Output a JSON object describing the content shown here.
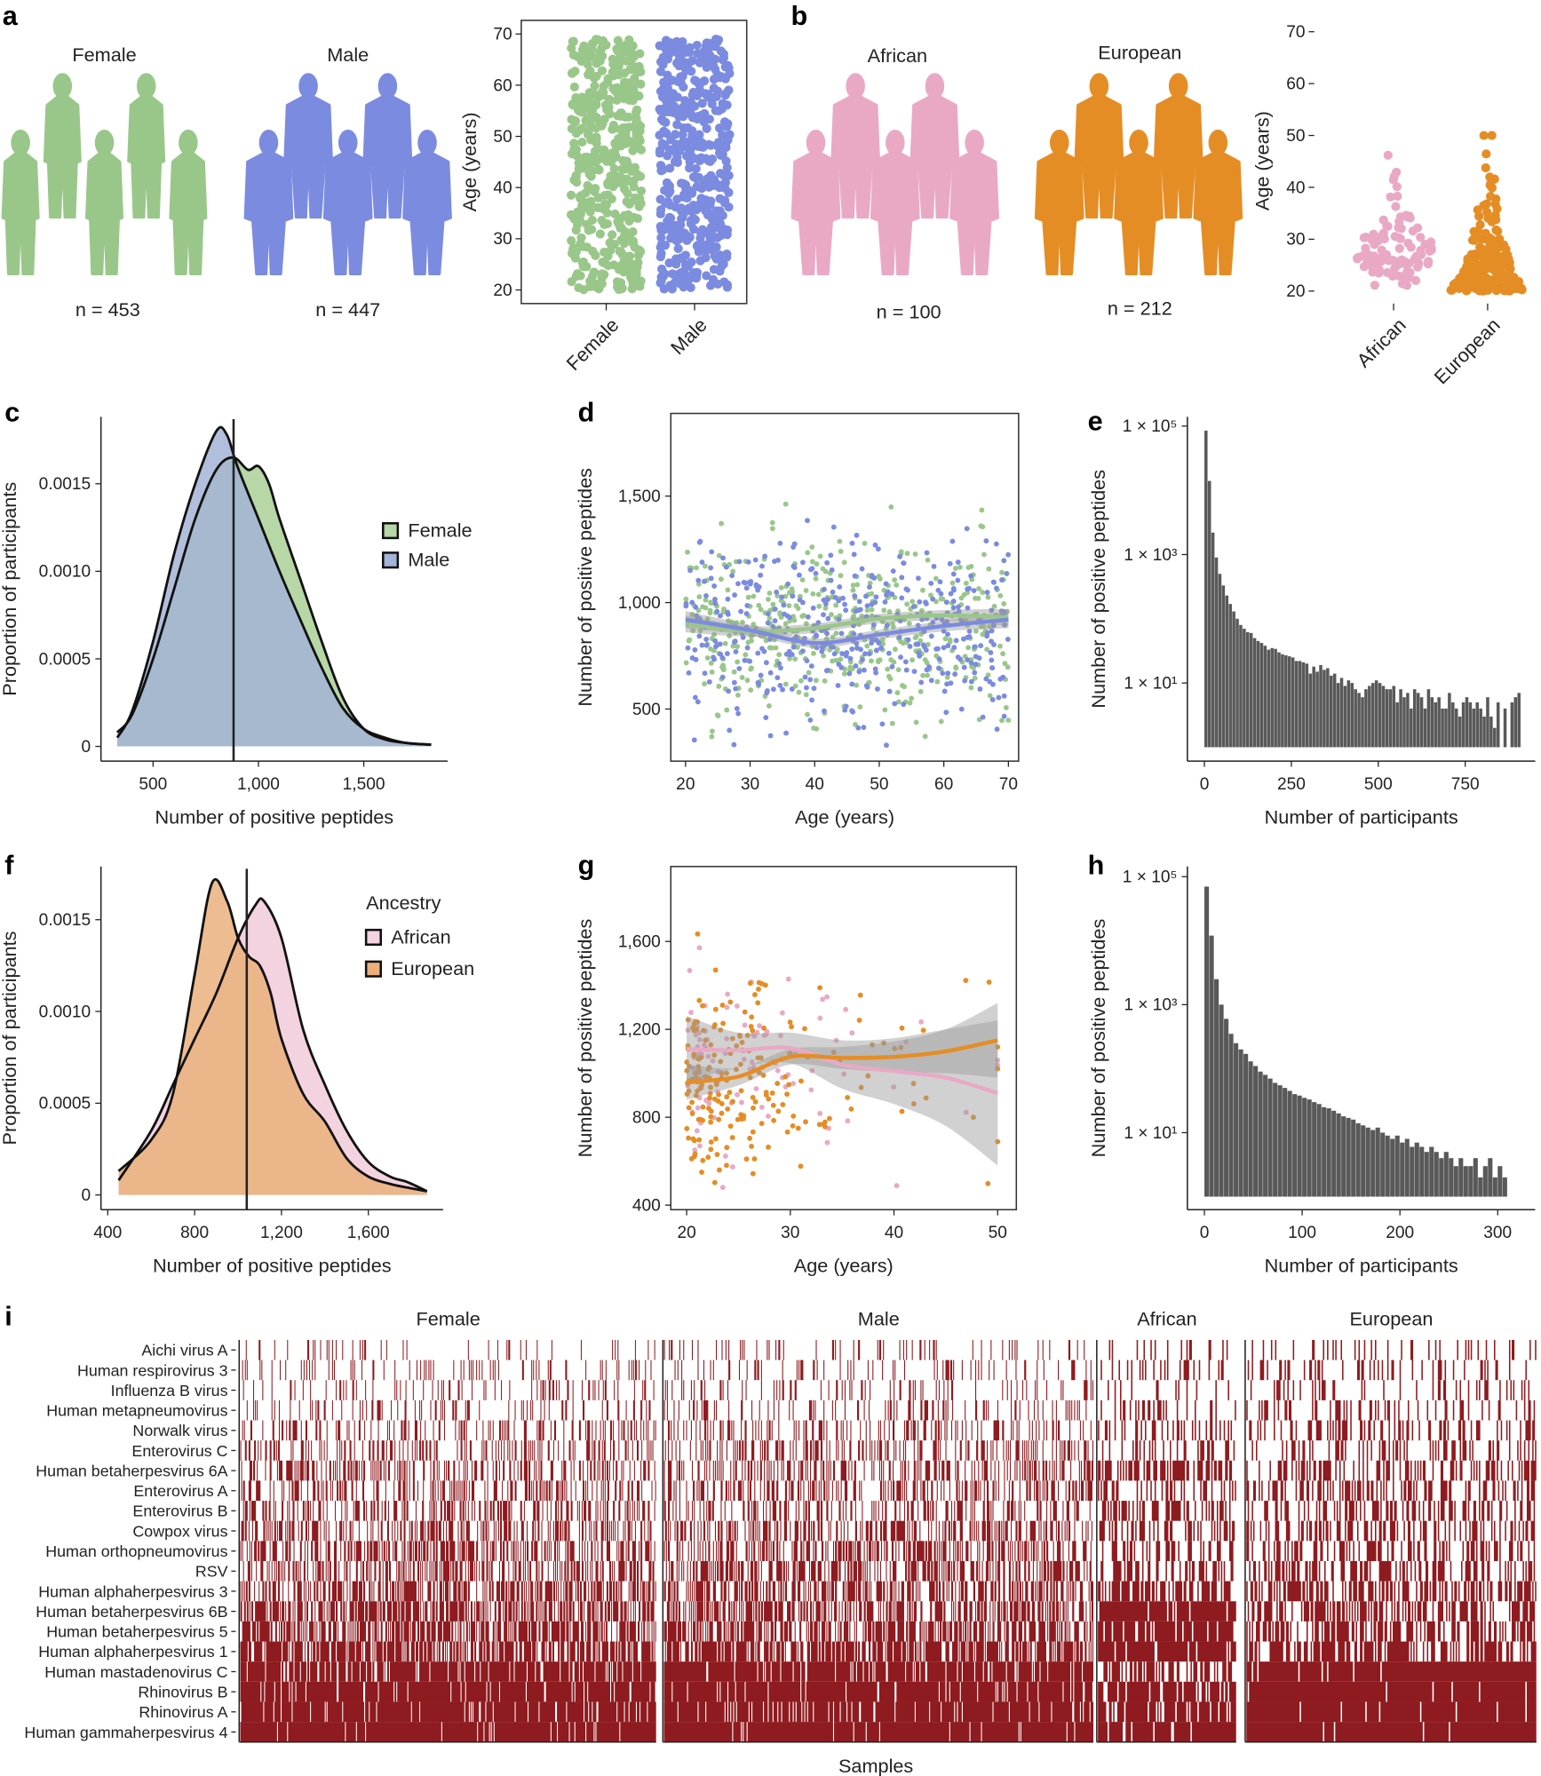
{
  "panel_labels": {
    "a": "a",
    "b": "b",
    "c": "c",
    "d": "d",
    "e": "e",
    "f": "f",
    "g": "g",
    "h": "h",
    "i": "i"
  },
  "colors": {
    "female": "#99c78a",
    "male": "#7b8be0",
    "african": "#e9a9c5",
    "european": "#e58d25",
    "heat": "#8e1b1f",
    "bar": "#595959"
  },
  "chart_data": [
    {
      "panel": "a",
      "type": "scatter",
      "groups": [
        {
          "name": "Female",
          "n_label": "n = 453",
          "n": 453
        },
        {
          "name": "Male",
          "n_label": "n = 447",
          "n": 447
        }
      ],
      "categories": [
        "Female",
        "Male"
      ],
      "ylabel": "Age (years)",
      "ylim": [
        20,
        70
      ],
      "yticks": [
        "20",
        "30",
        "40",
        "50",
        "60",
        "70"
      ]
    },
    {
      "panel": "b",
      "type": "scatter",
      "groups": [
        {
          "name": "African",
          "n_label": "n = 100",
          "n": 100
        },
        {
          "name": "European",
          "n_label": "n = 212",
          "n": 212
        }
      ],
      "categories": [
        "African",
        "European"
      ],
      "ylabel": "Age (years)",
      "ylim": [
        20,
        70
      ],
      "yticks": [
        "20",
        "30",
        "40",
        "50",
        "60",
        "70"
      ]
    },
    {
      "panel": "c",
      "type": "area",
      "xlabel": "Number of positive peptides",
      "ylabel": "Proportion of participants",
      "xticks": [
        {
          "v": 500,
          "l": "500"
        },
        {
          "v": 1000,
          "l": "1,000"
        },
        {
          "v": 1500,
          "l": "1,500"
        }
      ],
      "yticks": [
        {
          "v": 0,
          "l": "0"
        },
        {
          "v": 0.0005,
          "l": "0.0005"
        },
        {
          "v": 0.001,
          "l": "0.0010"
        },
        {
          "v": 0.0015,
          "l": "0.0015"
        }
      ],
      "median_line": 882,
      "series": [
        {
          "name": "Female",
          "fill": "#b7d7a6",
          "x": [
            330,
            400,
            500,
            600,
            700,
            800,
            880,
            950,
            1000,
            1050,
            1100,
            1200,
            1300,
            1400,
            1500,
            1600,
            1700,
            1820
          ],
          "y": [
            8e-05,
            0.00018,
            0.0005,
            0.0009,
            0.0013,
            0.00158,
            0.00165,
            0.00158,
            0.0016,
            0.0015,
            0.0013,
            0.00095,
            0.0006,
            0.00028,
            0.0001,
            4e-05,
            2e-05,
            1e-05
          ]
        },
        {
          "name": "Male",
          "fill": "#a4b4d6",
          "x": [
            330,
            400,
            500,
            600,
            700,
            800,
            850,
            900,
            1000,
            1100,
            1200,
            1300,
            1400,
            1500,
            1600,
            1700,
            1820
          ],
          "y": [
            5e-05,
            0.0002,
            0.0006,
            0.0011,
            0.0015,
            0.0018,
            0.00178,
            0.0016,
            0.0013,
            0.001,
            0.00072,
            0.00045,
            0.00022,
            0.0001,
            5e-05,
            2e-05,
            1e-05
          ]
        }
      ]
    },
    {
      "panel": "d",
      "type": "scatter",
      "xlabel": "Age (years)",
      "ylabel": "Number of positive peptides",
      "xlim": [
        20,
        70
      ],
      "xticks": [
        {
          "v": 20,
          "l": "20"
        },
        {
          "v": 30,
          "l": "30"
        },
        {
          "v": 40,
          "l": "40"
        },
        {
          "v": 50,
          "l": "50"
        },
        {
          "v": 60,
          "l": "60"
        },
        {
          "v": 70,
          "l": "70"
        }
      ],
      "yticks": [
        {
          "v": 500,
          "l": "500"
        },
        {
          "v": 1000,
          "l": "1,000"
        },
        {
          "v": 1500,
          "l": "1,500"
        }
      ],
      "trend": [
        {
          "name": "Female",
          "x": [
            20,
            30,
            40,
            50,
            60,
            70
          ],
          "y": [
            900,
            865,
            880,
            925,
            940,
            930
          ],
          "ci": [
            40,
            25,
            22,
            22,
            25,
            40
          ]
        },
        {
          "name": "Male",
          "x": [
            20,
            30,
            40,
            50,
            60,
            70
          ],
          "y": [
            920,
            870,
            810,
            850,
            890,
            920
          ],
          "ci": [
            40,
            25,
            22,
            22,
            25,
            40
          ]
        }
      ]
    },
    {
      "panel": "e",
      "type": "bar",
      "xlabel": "Number of participants",
      "ylabel": "Number of positive peptides",
      "log_y": true,
      "bin_width": 10,
      "xticks": [
        {
          "v": 0,
          "l": "0"
        },
        {
          "v": 250,
          "l": "250"
        },
        {
          "v": 500,
          "l": "500"
        },
        {
          "v": 750,
          "l": "750"
        }
      ],
      "yticks": [
        {
          "v": 100000,
          "l": "1 × 10⁵"
        },
        {
          "v": 1000,
          "l": "1 × 10³"
        },
        {
          "v": 10,
          "l": "1 × 10¹"
        }
      ],
      "values": [
        85000,
        14000,
        2200,
        900,
        500,
        330,
        230,
        170,
        130,
        100,
        80,
        70,
        62,
        60,
        50,
        45,
        42,
        38,
        33,
        35,
        34,
        30,
        28,
        27,
        26,
        25,
        22,
        22,
        21,
        20,
        14,
        18,
        15,
        19,
        16,
        17,
        13,
        14,
        10,
        12,
        9,
        11,
        10,
        8,
        7,
        6,
        8,
        9,
        10,
        11,
        10,
        9,
        8,
        8,
        9,
        5,
        8,
        6,
        7,
        4,
        8,
        7,
        6,
        4,
        8,
        6,
        5,
        6,
        4,
        4,
        7,
        5,
        4,
        3,
        5,
        6,
        5,
        4,
        5,
        4,
        3,
        6,
        3,
        2,
        5,
        0,
        4,
        0,
        5,
        6,
        7
      ]
    },
    {
      "panel": "f",
      "type": "area",
      "xlabel": "Number of positive peptides",
      "ylabel": "Proportion of participants",
      "legend_title": "Ancestry",
      "xticks": [
        {
          "v": 400,
          "l": "400"
        },
        {
          "v": 800,
          "l": "800"
        },
        {
          "v": 1200,
          "l": "1,200"
        },
        {
          "v": 1600,
          "l": "1,600"
        }
      ],
      "yticks": [
        {
          "v": 0,
          "l": "0"
        },
        {
          "v": 0.0005,
          "l": "0.0005"
        },
        {
          "v": 0.001,
          "l": "0.0010"
        },
        {
          "v": 0.0015,
          "l": "0.0015"
        }
      ],
      "median_line": 1040,
      "series": [
        {
          "name": "African",
          "fill": "#f3d3df",
          "x": [
            450,
            600,
            700,
            800,
            900,
            1000,
            1080,
            1120,
            1200,
            1300,
            1400,
            1500,
            1600,
            1700,
            1780,
            1870
          ],
          "y": [
            8e-05,
            0.00035,
            0.0006,
            0.00085,
            0.0011,
            0.0014,
            0.00158,
            0.0016,
            0.0014,
            0.0009,
            0.0006,
            0.00035,
            0.00018,
            0.0001,
            7e-05,
            2e-05
          ]
        },
        {
          "name": "European",
          "fill": "#eab07c",
          "x": [
            450,
            600,
            700,
            800,
            880,
            950,
            1000,
            1050,
            1100,
            1150,
            1200,
            1300,
            1400,
            1500,
            1600,
            1700,
            1780,
            1870
          ],
          "y": [
            0.00013,
            0.0003,
            0.00055,
            0.0012,
            0.0017,
            0.0016,
            0.0014,
            0.0013,
            0.00125,
            0.0011,
            0.00085,
            0.00055,
            0.0004,
            0.0002,
            0.0001,
            6e-05,
            4e-05,
            2e-05
          ]
        }
      ]
    },
    {
      "panel": "g",
      "type": "scatter",
      "xlabel": "Age (years)",
      "ylabel": "Number of positive peptides",
      "xlim": [
        20,
        50
      ],
      "xticks": [
        {
          "v": 20,
          "l": "20"
        },
        {
          "v": 30,
          "l": "30"
        },
        {
          "v": 40,
          "l": "40"
        },
        {
          "v": 50,
          "l": "50"
        }
      ],
      "yticks": [
        {
          "v": 400,
          "l": "400"
        },
        {
          "v": 800,
          "l": "800"
        },
        {
          "v": 1200,
          "l": "1,200"
        },
        {
          "v": 1600,
          "l": "1,600"
        }
      ],
      "trend": [
        {
          "name": "African",
          "x": [
            20,
            25,
            30,
            35,
            40,
            45,
            50
          ],
          "y": [
            1110,
            1105,
            1115,
            1040,
            1010,
            980,
            910
          ],
          "ci": [
            150,
            80,
            70,
            110,
            150,
            220,
            330
          ]
        },
        {
          "name": "European",
          "x": [
            20,
            25,
            30,
            35,
            40,
            45,
            50
          ],
          "y": [
            960,
            985,
            1075,
            1070,
            1075,
            1100,
            1150
          ],
          "ci": [
            80,
            40,
            35,
            50,
            70,
            100,
            170
          ]
        }
      ]
    },
    {
      "panel": "h",
      "type": "bar",
      "xlabel": "Number of participants",
      "ylabel": "Number of positive peptides",
      "log_y": true,
      "bin_width": 5,
      "xticks": [
        {
          "v": 0,
          "l": "0"
        },
        {
          "v": 100,
          "l": "100"
        },
        {
          "v": 200,
          "l": "200"
        },
        {
          "v": 300,
          "l": "300"
        }
      ],
      "yticks": [
        {
          "v": 100000,
          "l": "1 × 10⁵"
        },
        {
          "v": 1000,
          "l": "1 × 10³"
        },
        {
          "v": 10,
          "l": "1 × 10¹"
        }
      ],
      "values": [
        70000,
        12000,
        2500,
        1000,
        600,
        350,
        250,
        200,
        170,
        130,
        110,
        90,
        80,
        70,
        60,
        55,
        50,
        45,
        40,
        38,
        35,
        33,
        30,
        28,
        25,
        24,
        22,
        20,
        18,
        17,
        16,
        14,
        13,
        12,
        11,
        12,
        10,
        9,
        8,
        9,
        7,
        8,
        6,
        7,
        6,
        5,
        6,
        5,
        4,
        5,
        4,
        3,
        4,
        3,
        3,
        4,
        2,
        3,
        4,
        2,
        3,
        2
      ]
    },
    {
      "panel": "i",
      "type": "heatmap",
      "xlabel": "Samples",
      "rows": [
        "Aichi virus A",
        "Human respirovirus 3",
        "Influenza B virus",
        "Human metapneumovirus",
        "Norwalk virus",
        "Enterovirus C",
        "Human betaherpesvirus 6A",
        "Enterovirus A",
        "Enterovirus B",
        "Cowpox virus",
        "Human orthopneumovirus",
        "RSV",
        "Human alphaherpesvirus 3",
        "Human betaherpesvirus 6B",
        "Human betaherpesvirus 5",
        "Human alphaherpesvirus 1",
        "Human mastadenovirus C",
        "Rhinovirus B",
        "Rhinovirus A",
        "Human gammaherpesvirus 4"
      ],
      "groups": [
        {
          "name": "Female",
          "n": 453,
          "positive_fraction": [
            0.1,
            0.15,
            0.15,
            0.2,
            0.25,
            0.3,
            0.35,
            0.35,
            0.35,
            0.4,
            0.45,
            0.45,
            0.55,
            0.6,
            0.62,
            0.72,
            0.88,
            0.92,
            0.9,
            0.96
          ]
        },
        {
          "name": "Male",
          "n": 447,
          "positive_fraction": [
            0.12,
            0.15,
            0.15,
            0.22,
            0.28,
            0.3,
            0.35,
            0.35,
            0.38,
            0.42,
            0.45,
            0.5,
            0.55,
            0.6,
            0.6,
            0.7,
            0.9,
            0.92,
            0.9,
            0.96
          ]
        },
        {
          "name": "African",
          "n": 100,
          "positive_fraction": [
            0.15,
            0.2,
            0.2,
            0.25,
            0.3,
            0.35,
            0.6,
            0.4,
            0.4,
            0.45,
            0.5,
            0.5,
            0.6,
            0.9,
            0.85,
            0.85,
            0.6,
            0.8,
            0.8,
            0.9
          ]
        },
        {
          "name": "European",
          "n": 212,
          "positive_fraction": [
            0.15,
            0.2,
            0.2,
            0.25,
            0.3,
            0.3,
            0.35,
            0.4,
            0.4,
            0.45,
            0.45,
            0.5,
            0.55,
            0.55,
            0.55,
            0.6,
            0.97,
            0.97,
            0.96,
            0.95
          ]
        }
      ]
    }
  ]
}
